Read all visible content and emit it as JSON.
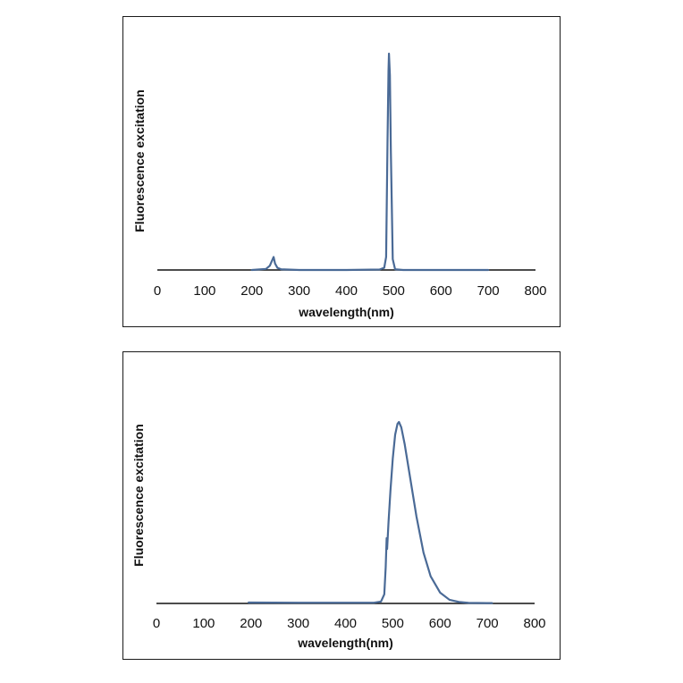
{
  "chart_data": [
    {
      "type": "line",
      "title": "",
      "xlabel": "wavelength(nm)",
      "ylabel": "Fluorescence excitation",
      "xlim": [
        0,
        800
      ],
      "ylim": [
        0,
        1
      ],
      "x_ticks": [
        "0",
        "100",
        "200",
        "300",
        "400",
        "500",
        "600",
        "700",
        "800"
      ],
      "y_ticks": [],
      "grid": false,
      "legend": "none",
      "line_color": "#4a6a96",
      "series": [
        {
          "x": [
            200,
            230,
            238,
            243,
            246,
            249,
            254,
            262,
            300,
            400,
            470,
            480,
            484,
            487,
            489,
            490,
            492,
            494,
            498,
            503,
            520,
            600,
            700
          ],
          "values": [
            0,
            0.005,
            0.02,
            0.045,
            0.06,
            0.03,
            0.01,
            0.003,
            0,
            0,
            0.002,
            0.01,
            0.06,
            0.6,
            0.92,
            1.0,
            0.9,
            0.55,
            0.05,
            0.003,
            0,
            0,
            0
          ]
        }
      ]
    },
    {
      "type": "line",
      "title": "",
      "xlabel": "wavelength(nm)",
      "ylabel": "Fluorescence excitation",
      "xlim": [
        0,
        800
      ],
      "ylim": [
        0,
        1
      ],
      "x_ticks": [
        "0",
        "100",
        "200",
        "300",
        "400",
        "500",
        "600",
        "700",
        "800"
      ],
      "y_ticks": [],
      "grid": false,
      "legend": "none",
      "line_color": "#4a6a96",
      "series": [
        {
          "x": [
            195,
            300,
            400,
            460,
            475,
            482,
            485,
            487,
            488,
            491,
            495,
            500,
            505,
            510,
            513,
            518,
            525,
            535,
            550,
            565,
            580,
            600,
            620,
            640,
            660,
            700,
            710
          ],
          "values": [
            0.005,
            0.004,
            0.004,
            0.004,
            0.01,
            0.05,
            0.2,
            0.36,
            0.3,
            0.45,
            0.62,
            0.8,
            0.93,
            0.99,
            1.0,
            0.97,
            0.88,
            0.72,
            0.48,
            0.28,
            0.15,
            0.06,
            0.02,
            0.008,
            0.003,
            0.002,
            0.002
          ]
        }
      ]
    }
  ]
}
